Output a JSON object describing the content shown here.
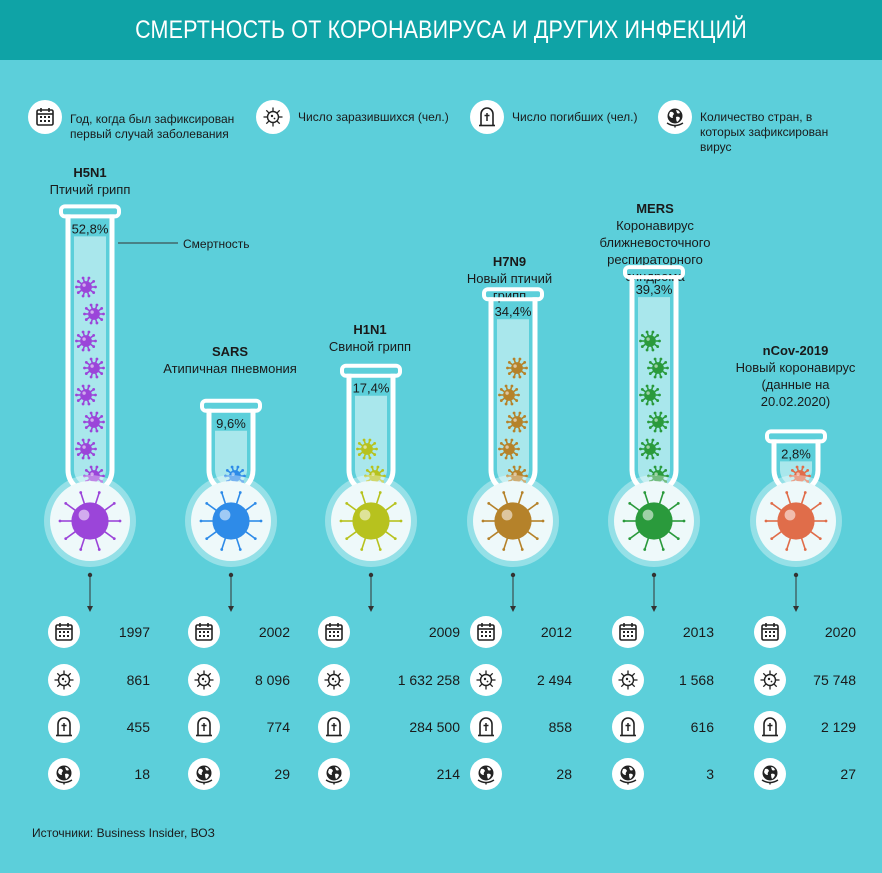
{
  "title": "СМЕРТНОСТЬ ОТ КОРОНАВИРУСА И ДРУГИХ ИНФЕКЦИЙ",
  "legend": [
    {
      "icon": "calendar-icon",
      "text": "Год, когда был зафиксирован первый случай заболевания"
    },
    {
      "icon": "virus-icon",
      "text": "Число заразившихся (чел.)"
    },
    {
      "icon": "tombstone-icon",
      "text": "Число погибших (чел.)"
    },
    {
      "icon": "globe-icon",
      "text": "Количество стран, в которых зафиксирован вирус"
    }
  ],
  "mortality_label": "Смертность",
  "source": "Источники: Business Insider, ВОЗ",
  "colors": {
    "header": "#0fa3a6",
    "background": "#5ccfda",
    "H5N1": "#9b45d9",
    "SARS": "#2e8be8",
    "H1N1": "#b7c21e",
    "H7N9": "#b5822a",
    "MERS": "#2a9a3c",
    "nCov-2019": "#e06d4a"
  },
  "chart_data": {
    "type": "bar",
    "ylabel": "Смертность",
    "ylim": [
      0,
      60
    ],
    "series": [
      {
        "code": "H5N1",
        "name": "Птичий грипп",
        "mortality": 52.8,
        "mortality_label": "52,8%",
        "year": "1997",
        "infected": "861",
        "deaths": "455",
        "countries": "18"
      },
      {
        "code": "SARS",
        "name": "Атипичная пневмония",
        "mortality": 9.6,
        "mortality_label": "9,6%",
        "year": "2002",
        "infected": "8 096",
        "deaths": "774",
        "countries": "29"
      },
      {
        "code": "H1N1",
        "name": "Свиной грипп",
        "mortality": 17.4,
        "mortality_label": "17,4%",
        "year": "2009",
        "infected": "1 632 258",
        "deaths": "284 500",
        "countries": "214"
      },
      {
        "code": "H7N9",
        "name": "Новый птичий грипп",
        "mortality": 34.4,
        "mortality_label": "34,4%",
        "year": "2012",
        "infected": "2 494",
        "deaths": "858",
        "countries": "28"
      },
      {
        "code": "MERS",
        "name": "Коронавирус ближневосточного респираторного синдрома",
        "mortality": 39.3,
        "mortality_label": "39,3%",
        "year": "2013",
        "infected": "1 568",
        "deaths": "616",
        "countries": "3"
      },
      {
        "code": "nCov-2019",
        "name": "Новый коронавирус (данные на 20.02.2020)",
        "mortality": 2.8,
        "mortality_label": "2,8%",
        "year": "2020",
        "infected": "75 748",
        "deaths": "2 129",
        "countries": "27"
      }
    ]
  }
}
